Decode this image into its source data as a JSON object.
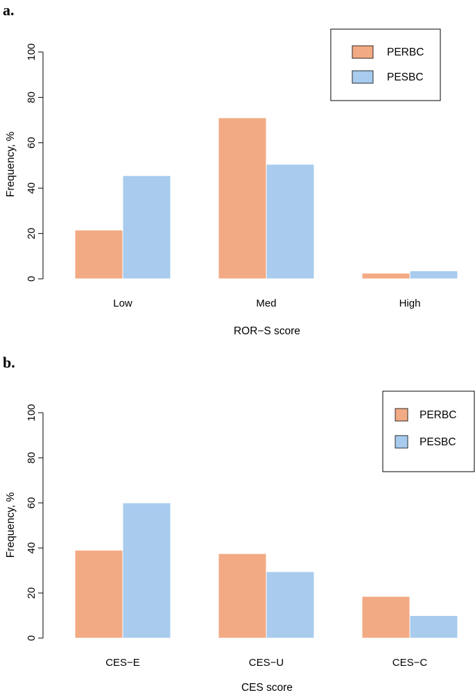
{
  "chart_data": [
    {
      "type": "bar",
      "panel_label": "a.",
      "categories": [
        "Low",
        "Med",
        "High"
      ],
      "series": [
        {
          "name": "PERBC",
          "color": "#F2AA84",
          "values": [
            21.5,
            71,
            2.5
          ]
        },
        {
          "name": "PESBC",
          "color": "#A8CBEE",
          "values": [
            45.5,
            50.5,
            3.5
          ]
        }
      ],
      "xlabel": "ROR−S score",
      "ylabel": "Frequency, %",
      "ylim": [
        0,
        100
      ],
      "yticks": [
        "0",
        "20",
        "40",
        "60",
        "80",
        "100"
      ],
      "legend": "top-right",
      "grid": false
    },
    {
      "type": "bar",
      "panel_label": "b.",
      "categories": [
        "CES−E",
        "CES−U",
        "CES−C"
      ],
      "series": [
        {
          "name": "PERBC",
          "color": "#F2AA84",
          "values": [
            39,
            37.5,
            18.5
          ]
        },
        {
          "name": "PESBC",
          "color": "#A8CBEE",
          "values": [
            60,
            29.5,
            10
          ]
        }
      ],
      "xlabel": "CES score",
      "ylabel": "Frequency, %",
      "ylim": [
        0,
        100
      ],
      "yticks": [
        "0",
        "20",
        "40",
        "60",
        "80",
        "100"
      ],
      "legend": "top-right",
      "grid": false
    }
  ]
}
